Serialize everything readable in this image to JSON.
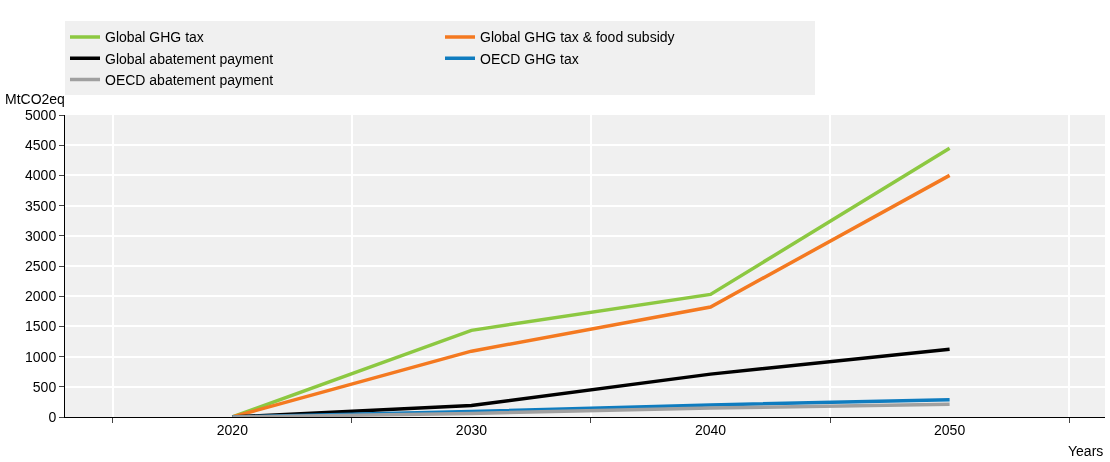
{
  "chart_data": {
    "type": "line",
    "xlabel": "Years",
    "ylabel": "MtCO2eq",
    "categories": [
      "2020",
      "2030",
      "2040",
      "2050"
    ],
    "series": [
      {
        "name": "Global GHG tax",
        "color": "#8cc841",
        "values": [
          0,
          1435,
          2030,
          4450
        ]
      },
      {
        "name": "Global GHG tax & food subsidy",
        "color": "#f47920",
        "values": [
          0,
          1090,
          1820,
          4000
        ]
      },
      {
        "name": "Global abatement payment",
        "color": "#000000",
        "values": [
          0,
          190,
          710,
          1120
        ]
      },
      {
        "name": "OECD GHG tax",
        "color": "#0f7cbf",
        "values": [
          0,
          90,
          200,
          285
        ]
      },
      {
        "name": "OECD abatement payment",
        "color": "#a0a0a0",
        "values": [
          0,
          60,
          150,
          210
        ]
      }
    ],
    "ylim": [
      0,
      5000
    ],
    "yticks": [
      0,
      500,
      1000,
      1500,
      2000,
      2500,
      3000,
      3500,
      4000,
      4500,
      5000
    ],
    "grid": true,
    "legend": "top",
    "marker": "none",
    "line_style": "solid"
  }
}
